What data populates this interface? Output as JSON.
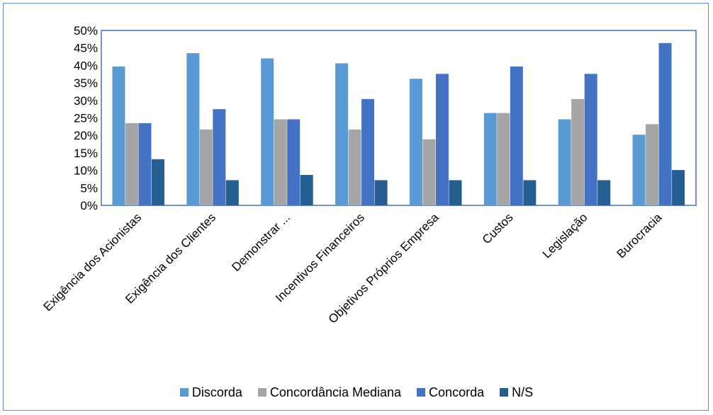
{
  "chart_data": {
    "type": "bar",
    "categories": [
      "Exigência dos Acionistas",
      "Exigência dos Clientes",
      "Demonstrar ...",
      "Incentivos Financeiros",
      "Objetivos Próprios Empresa",
      "Custos",
      "Legislação",
      "Burocracia"
    ],
    "series": [
      {
        "name": "Discorda",
        "color": "#5b9bd5",
        "values": [
          39.7,
          43.5,
          42,
          40.6,
          36.2,
          26.4,
          24.6,
          20.2
        ]
      },
      {
        "name": "Concordância Mediana",
        "color": "#a5a5a5",
        "values": [
          23.5,
          21.7,
          24.6,
          21.7,
          18.9,
          26.4,
          30.4,
          23.2
        ]
      },
      {
        "name": "Concorda",
        "color": "#4472c4",
        "values": [
          23.5,
          27.5,
          24.6,
          30.4,
          37.6,
          39.7,
          37.6,
          46.4
        ]
      },
      {
        "name": "N/S",
        "color": "#255e91",
        "values": [
          13.2,
          7.2,
          8.7,
          7.2,
          7.2,
          7.2,
          7.2,
          10.1
        ]
      }
    ],
    "yticks": [
      "0%",
      "5%",
      "10%",
      "15%",
      "20%",
      "25%",
      "30%",
      "35%",
      "40%",
      "45%",
      "50%"
    ],
    "ylim": [
      0,
      50
    ],
    "legend_position": "bottom",
    "grid": false
  }
}
